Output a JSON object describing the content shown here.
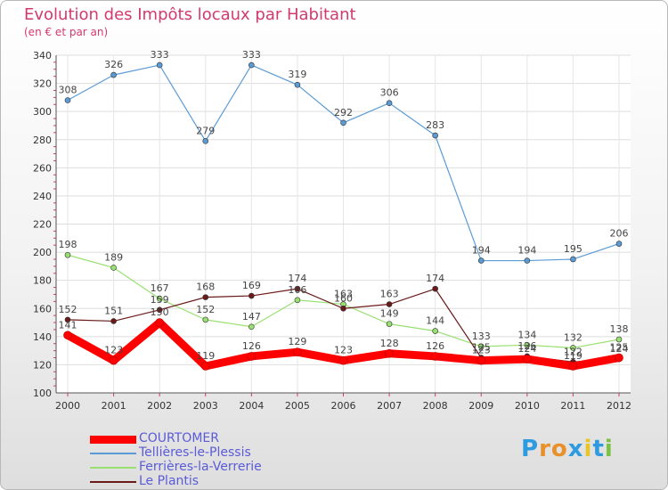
{
  "title": "Evolution des Impôts locaux par Habitant",
  "subtitle": "(en € et par an)",
  "logo_text": "Proxiti",
  "chart_data": {
    "type": "line",
    "title": "Evolution des Impôts locaux par Habitant",
    "subtitle": "(en € et par an)",
    "xlabel": "",
    "ylabel": "",
    "categories": [
      "2000",
      "2001",
      "2002",
      "2003",
      "2004",
      "2005",
      "2006",
      "2007",
      "2008",
      "2009",
      "2010",
      "2011",
      "2012"
    ],
    "ylim": [
      100,
      340
    ],
    "yticks": [
      100,
      120,
      140,
      160,
      180,
      200,
      220,
      240,
      260,
      280,
      300,
      320,
      340
    ],
    "grid": true,
    "legend_position": "bottom-left",
    "series": [
      {
        "name": "Tellières-le-Plessis",
        "color": "#5b9bd5",
        "width": 1.2,
        "values": [
          308,
          326,
          333,
          279,
          333,
          319,
          292,
          306,
          283,
          194,
          194,
          195,
          206
        ]
      },
      {
        "name": "Ferrières-la-Verrerie",
        "color": "#98e070",
        "width": 1.2,
        "values": [
          198,
          189,
          167,
          152,
          147,
          166,
          163,
          149,
          144,
          133,
          134,
          132,
          138
        ]
      },
      {
        "name": "Le Plantis",
        "color": "#6b1a1a",
        "width": 1.2,
        "values": [
          152,
          151,
          159,
          168,
          169,
          174,
          160,
          163,
          174,
          125,
          126,
          122,
          124
        ]
      },
      {
        "name": "COURTOMER",
        "color": "#ff0000",
        "width": 9,
        "values": [
          141,
          123,
          150,
          119,
          126,
          129,
          123,
          128,
          126,
          123,
          124,
          119,
          125
        ]
      }
    ],
    "legend_order": [
      "COURTOMER",
      "Tellières-le-Plessis",
      "Ferrières-la-Verrerie",
      "Le Plantis"
    ]
  }
}
